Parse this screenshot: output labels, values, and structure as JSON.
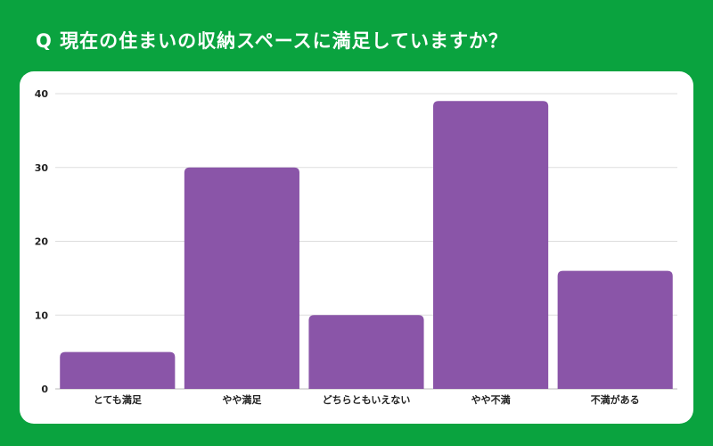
{
  "title": "Q 現在の住まいの収納スペースに満足していますか？",
  "colors": {
    "background": "#0aa33f",
    "card": "#ffffff",
    "bar": "#8a55a8",
    "grid": "#dddddd"
  },
  "chart_data": {
    "type": "bar",
    "categories": [
      "とても満足",
      "やや満足",
      "どちらともいえない",
      "やや不満",
      "不満がある"
    ],
    "values": [
      5,
      30,
      10,
      39,
      16
    ],
    "ylim": [
      0,
      40
    ],
    "yticks": [
      0,
      10,
      20,
      30,
      40
    ],
    "grid": true
  }
}
